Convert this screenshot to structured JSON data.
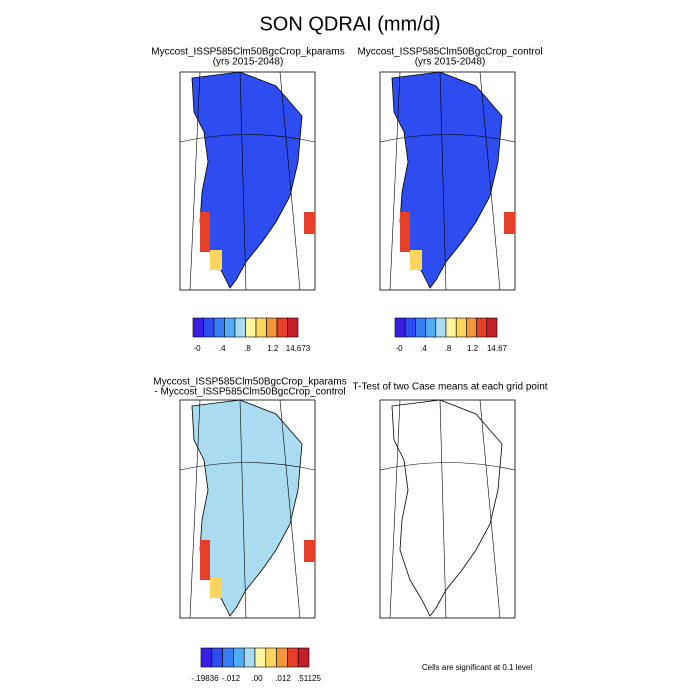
{
  "title": "SON QDRAI (mm/d)",
  "colorbar_colors": [
    "#3a1ee6",
    "#2d4df0",
    "#3a7ef6",
    "#50acf5",
    "#a9dcf0",
    "#fff7a0",
    "#fbd55e",
    "#f59638",
    "#e63e28",
    "#c41e2a"
  ],
  "panels": [
    {
      "title": [
        "Myccost_ISSP585Clm50BgcCrop_kparams",
        "(yrs 2015-2048)"
      ],
      "colorbar_labels": [
        "-0",
        ".4",
        ".8",
        "1.2",
        "14.673"
      ]
    },
    {
      "title": [
        "Myccost_ISSP585Clm50BgcCrop_control",
        "(yrs 2015-2048)"
      ],
      "colorbar_labels": [
        "-0",
        ".4",
        ".8",
        "1.2",
        "14.67"
      ]
    },
    {
      "title": [
        "Myccost_ISSP585Clm50BgcCrop_kparams",
        "- Myccost_ISSP585Clm50BgcCrop_control"
      ],
      "colorbar_labels": [
        "-.19836",
        "-.012",
        ".00",
        ".012",
        ".51125"
      ]
    },
    {
      "title": [
        "T-Test of two Case means at each grid point"
      ]
    }
  ],
  "note": "Cells are significant at 0.1 level"
}
